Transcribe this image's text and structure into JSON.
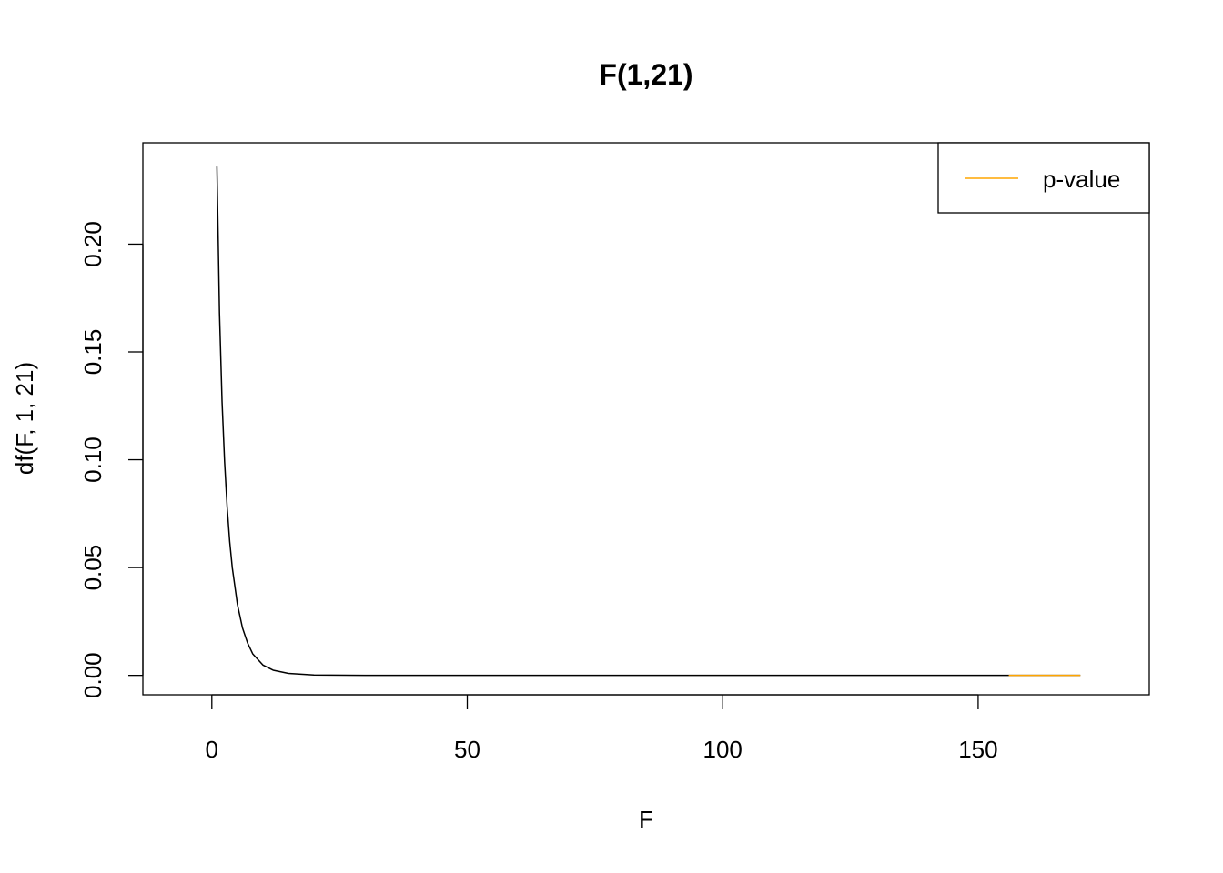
{
  "chart_data": {
    "type": "line",
    "title": "F(1,21)",
    "xlabel": "F",
    "ylabel": "df(F, 1, 21)",
    "xlim": [
      -13.5,
      183.5
    ],
    "ylim": [
      -0.009,
      0.247
    ],
    "x_ticks": [
      0,
      50,
      100,
      150
    ],
    "x_tick_labels": [
      "0",
      "50",
      "100",
      "150"
    ],
    "y_ticks": [
      0.0,
      0.05,
      0.1,
      0.15,
      0.2
    ],
    "y_tick_labels": [
      "0.00",
      "0.05",
      "0.10",
      "0.15",
      "0.20"
    ],
    "grid": false,
    "legend": {
      "position": "top-right",
      "entries": [
        {
          "label": "p-value",
          "color": "#FFA500"
        }
      ]
    },
    "series": [
      {
        "color": "#000000",
        "df1": 1,
        "df2": 21,
        "x_range": [
          1,
          170
        ],
        "points": [
          [
            1,
            0.236
          ],
          [
            1.5,
            0.168
          ],
          [
            2,
            0.127
          ],
          [
            2.5,
            0.099
          ],
          [
            3,
            0.078
          ],
          [
            3.5,
            0.062
          ],
          [
            4,
            0.05
          ],
          [
            5,
            0.033
          ],
          [
            6,
            0.022
          ],
          [
            7,
            0.015
          ],
          [
            8,
            0.01
          ],
          [
            10,
            0.0048
          ],
          [
            12,
            0.0024
          ],
          [
            15,
            0.0009
          ],
          [
            20,
            0.0002
          ],
          [
            30,
            0.0
          ],
          [
            50,
            0.0
          ],
          [
            100,
            0.0
          ],
          [
            150,
            0.0
          ],
          [
            170,
            0.0
          ]
        ]
      },
      {
        "name": "p-value",
        "color": "#FFA500",
        "points": [
          [
            156,
            0.0
          ],
          [
            170,
            0.0
          ]
        ]
      }
    ]
  }
}
